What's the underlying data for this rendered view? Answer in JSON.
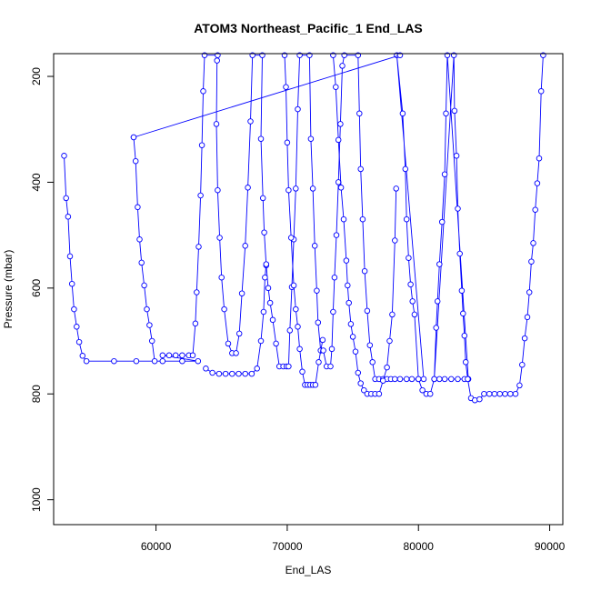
{
  "chart_data": {
    "type": "line",
    "title": "ATOM3 Northeast_Pacific_1 End_LAS",
    "xlabel": "End_LAS",
    "ylabel": "Pressure (mbar)",
    "xlim": [
      52200,
      91000
    ],
    "ylim": [
      1047,
      157
    ],
    "y_reversed": true,
    "grid": false,
    "legend": "none",
    "marker": "open-circle",
    "line_color": "#0000ff",
    "x_ticks": [
      60000,
      70000,
      80000,
      90000
    ],
    "x_tick_labels": [
      "60000",
      "70000",
      "80000",
      "90000"
    ],
    "y_ticks": [
      200,
      400,
      600,
      800,
      1000
    ],
    "y_tick_labels": [
      "200",
      "400",
      "600",
      "800",
      "1000"
    ],
    "series": [
      {
        "values": [
          [
            53000,
            350
          ],
          [
            53150,
            430
          ],
          [
            53300,
            465
          ],
          [
            53450,
            540
          ],
          [
            53600,
            592
          ],
          [
            53750,
            640
          ],
          [
            53950,
            673
          ],
          [
            54150,
            702
          ],
          [
            54400,
            728
          ],
          [
            54700,
            738
          ],
          [
            56800,
            738
          ],
          [
            58500,
            738
          ],
          [
            60500,
            738
          ],
          [
            62000,
            738
          ],
          [
            63200,
            738
          ],
          [
            60500,
            727
          ],
          [
            61000,
            727
          ],
          [
            61500,
            727
          ],
          [
            62000,
            727
          ],
          [
            62500,
            727
          ],
          [
            62800,
            727
          ],
          [
            63000,
            667
          ],
          [
            63100,
            608
          ],
          [
            63250,
            522
          ],
          [
            63400,
            425
          ],
          [
            63500,
            330
          ],
          [
            63600,
            228
          ],
          [
            63700,
            160
          ],
          [
            64700,
            160
          ],
          [
            64650,
            170
          ],
          [
            64600,
            290
          ],
          [
            64700,
            415
          ],
          [
            64850,
            505
          ],
          [
            65000,
            580
          ],
          [
            65200,
            640
          ],
          [
            65500,
            705
          ],
          [
            65800,
            723
          ],
          [
            66100,
            723
          ],
          [
            66350,
            686
          ],
          [
            66550,
            610
          ],
          [
            66800,
            520
          ],
          [
            67000,
            410
          ],
          [
            67200,
            285
          ],
          [
            67350,
            160
          ],
          [
            68100,
            160
          ],
          [
            68000,
            318
          ],
          [
            68150,
            430
          ],
          [
            68250,
            495
          ],
          [
            68400,
            557
          ],
          [
            68550,
            600
          ],
          [
            68700,
            628
          ],
          [
            68900,
            660
          ],
          [
            69150,
            705
          ],
          [
            69400,
            748
          ],
          [
            69700,
            748
          ],
          [
            69950,
            748
          ],
          [
            70100,
            748
          ],
          [
            70200,
            680
          ],
          [
            70350,
            598
          ],
          [
            70500,
            508
          ],
          [
            70650,
            412
          ],
          [
            70800,
            262
          ],
          [
            70950,
            160
          ],
          [
            71700,
            160
          ],
          [
            71800,
            318
          ],
          [
            71950,
            412
          ],
          [
            72100,
            520
          ],
          [
            72250,
            605
          ],
          [
            72350,
            665
          ],
          [
            72550,
            718
          ],
          [
            72750,
            718
          ],
          [
            73000,
            748
          ],
          [
            73300,
            748
          ],
          [
            73400,
            715
          ],
          [
            73500,
            645
          ],
          [
            73600,
            580
          ],
          [
            73750,
            500
          ],
          [
            73900,
            400
          ],
          [
            74050,
            290
          ],
          [
            74200,
            180
          ],
          [
            74350,
            160
          ],
          [
            75400,
            160
          ],
          [
            75500,
            270
          ],
          [
            75600,
            375
          ],
          [
            75750,
            470
          ],
          [
            75900,
            568
          ],
          [
            76100,
            643
          ],
          [
            76300,
            708
          ],
          [
            76500,
            740
          ],
          [
            76700,
            772
          ],
          [
            77000,
            772
          ],
          [
            77300,
            772
          ],
          [
            77600,
            772
          ],
          [
            77900,
            772
          ],
          [
            78200,
            772
          ],
          [
            78600,
            772
          ],
          [
            79100,
            772
          ],
          [
            79500,
            772
          ],
          [
            80000,
            772
          ],
          [
            80400,
            772
          ],
          [
            78350,
            160
          ],
          [
            78800,
            270
          ],
          [
            79000,
            375
          ],
          [
            79100,
            470
          ],
          [
            79250,
            543
          ],
          [
            79400,
            593
          ],
          [
            79550,
            625
          ],
          [
            79700,
            650
          ],
          [
            80000,
            772
          ],
          [
            80300,
            793
          ],
          [
            80600,
            800
          ],
          [
            80900,
            800
          ],
          [
            81200,
            772
          ],
          [
            81600,
            772
          ],
          [
            82000,
            772
          ],
          [
            82500,
            772
          ],
          [
            83000,
            772
          ],
          [
            83500,
            772
          ],
          [
            83800,
            772
          ],
          [
            82200,
            160
          ],
          [
            82100,
            270
          ],
          [
            82000,
            385
          ],
          [
            81800,
            475
          ],
          [
            81600,
            555
          ],
          [
            81450,
            625
          ],
          [
            81350,
            675
          ],
          [
            81200,
            772
          ],
          [
            82700,
            160
          ],
          [
            82750,
            265
          ],
          [
            82900,
            350
          ],
          [
            83000,
            450
          ],
          [
            83150,
            535
          ],
          [
            83300,
            605
          ],
          [
            83400,
            648
          ],
          [
            83500,
            690
          ],
          [
            83600,
            740
          ],
          [
            83750,
            772
          ],
          [
            84000,
            808
          ],
          [
            84300,
            812
          ],
          [
            84650,
            810
          ],
          [
            85000,
            800
          ],
          [
            85400,
            800
          ],
          [
            85800,
            800
          ],
          [
            86200,
            800
          ],
          [
            86600,
            800
          ],
          [
            87000,
            800
          ],
          [
            87400,
            800
          ],
          [
            87700,
            784
          ],
          [
            87900,
            745
          ],
          [
            88100,
            695
          ],
          [
            88300,
            655
          ],
          [
            88450,
            608
          ],
          [
            88600,
            550
          ],
          [
            88750,
            515
          ],
          [
            88900,
            452
          ],
          [
            89050,
            402
          ],
          [
            89200,
            355
          ],
          [
            89350,
            228
          ],
          [
            89500,
            160
          ]
        ]
      },
      {
        "values": [
          [
            58300,
            315
          ],
          [
            58450,
            360
          ],
          [
            58600,
            447
          ],
          [
            58750,
            508
          ],
          [
            58900,
            552
          ],
          [
            59100,
            595
          ],
          [
            59300,
            640
          ],
          [
            59500,
            670
          ],
          [
            59700,
            700
          ],
          [
            59900,
            738
          ]
        ]
      },
      {
        "values": [
          [
            58300,
            315
          ],
          [
            78600,
            160
          ]
        ]
      },
      {
        "values": [
          [
            63800,
            752
          ],
          [
            64300,
            760
          ],
          [
            64800,
            762
          ],
          [
            65300,
            762
          ],
          [
            65800,
            762
          ],
          [
            66300,
            762
          ],
          [
            66800,
            762
          ],
          [
            67300,
            762
          ],
          [
            67700,
            752
          ],
          [
            68000,
            700
          ],
          [
            68200,
            645
          ],
          [
            68300,
            580
          ],
          [
            68400,
            555
          ]
        ]
      },
      {
        "values": [
          [
            69800,
            160
          ],
          [
            69900,
            220
          ],
          [
            70000,
            325
          ],
          [
            70100,
            415
          ],
          [
            70300,
            505
          ],
          [
            70500,
            595
          ],
          [
            70650,
            640
          ],
          [
            70800,
            673
          ],
          [
            70950,
            715
          ],
          [
            71150,
            758
          ],
          [
            71350,
            783
          ],
          [
            71550,
            783
          ],
          [
            71750,
            783
          ],
          [
            71950,
            783
          ],
          [
            72150,
            783
          ],
          [
            72400,
            740
          ],
          [
            72700,
            698
          ]
        ]
      },
      {
        "values": [
          [
            73500,
            160
          ],
          [
            73700,
            220
          ],
          [
            73900,
            320
          ],
          [
            74100,
            410
          ],
          [
            74300,
            470
          ],
          [
            74500,
            548
          ],
          [
            74600,
            595
          ],
          [
            74700,
            628
          ],
          [
            74850,
            668
          ],
          [
            75000,
            692
          ],
          [
            75200,
            720
          ],
          [
            75400,
            760
          ],
          [
            75600,
            780
          ],
          [
            75850,
            793
          ],
          [
            76100,
            800
          ],
          [
            76400,
            800
          ],
          [
            76700,
            800
          ],
          [
            77000,
            800
          ],
          [
            77300,
            775
          ],
          [
            77600,
            750
          ],
          [
            77800,
            700
          ],
          [
            78000,
            650
          ],
          [
            78200,
            510
          ],
          [
            78300,
            412
          ]
        ]
      }
    ]
  }
}
